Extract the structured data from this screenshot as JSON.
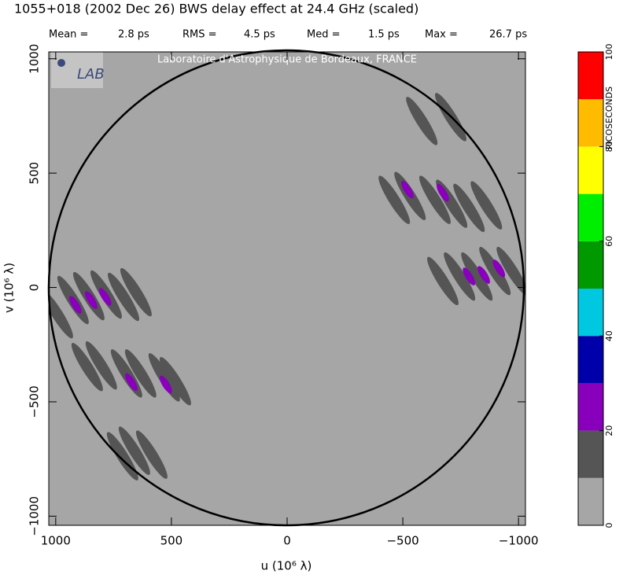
{
  "chart_data": {
    "type": "uv-map",
    "title": "1055+018  (2002 Dec 26)   BWS delay effect at 24.4 GHz (scaled)",
    "stats": [
      {
        "label": "Mean =",
        "value": "2.8 ps"
      },
      {
        "label": "RMS =",
        "value": "4.5 ps"
      },
      {
        "label": "Med =",
        "value": "1.5 ps"
      },
      {
        "label": "Max =",
        "value": "26.7 ps"
      }
    ],
    "watermark": "Laboratoire d'Astrophysique de Bordeaux, FRANCE",
    "xlabel": "u  (10⁶ λ)",
    "ylabel": "v  (10⁶ λ)",
    "xlim": [
      1030,
      -1030
    ],
    "ylim": [
      -1040,
      1030
    ],
    "xticks": [
      1000,
      500,
      0,
      {
        "value": -500,
        "label": "−500"
      },
      {
        "value": -1000,
        "label": "−1000"
      }
    ],
    "yticks": [
      {
        "value": -1000,
        "label": "−1000"
      },
      {
        "value": -500,
        "label": "−500"
      },
      0,
      500,
      1000
    ],
    "background_color": "#a6a6a6",
    "colorbar": {
      "label": "PICOSECONDS",
      "lim": [
        0,
        100
      ],
      "ticks": [
        0,
        20,
        40,
        60,
        80,
        100
      ],
      "bounds": [
        0,
        10,
        20,
        30,
        40,
        50,
        60,
        70,
        80,
        90,
        100
      ],
      "colors": [
        "#a6a6a6",
        "#555555",
        "#8800bb",
        "#0000aa",
        "#00c8e0",
        "#009900",
        "#00ee00",
        "#ffff00",
        "#ffbb00",
        "#ff0000"
      ]
    },
    "regions": [
      {
        "u": 993,
        "v": -117,
        "delay": 15
      },
      {
        "u": 925,
        "v": -55,
        "delay": 15
      },
      {
        "u": 857,
        "v": -38,
        "delay": 15
      },
      {
        "u": 782,
        "v": -31,
        "delay": 15
      },
      {
        "u": 707,
        "v": -41,
        "delay": 15
      },
      {
        "u": 653,
        "v": -21,
        "delay": 15
      },
      {
        "u": 864,
        "v": -348,
        "delay": 15
      },
      {
        "u": 803,
        "v": -341,
        "delay": 15
      },
      {
        "u": 694,
        "v": -376,
        "delay": 15
      },
      {
        "u": 633,
        "v": -376,
        "delay": 15
      },
      {
        "u": 531,
        "v": -393,
        "delay": 15
      },
      {
        "u": 483,
        "v": -410,
        "delay": 15
      },
      {
        "u": 711,
        "v": -738,
        "delay": 15
      },
      {
        "u": 660,
        "v": -714,
        "delay": 15
      },
      {
        "u": 585,
        "v": -731,
        "delay": 15
      },
      {
        "u": -582,
        "v": 728,
        "delay": 15
      },
      {
        "u": -707,
        "v": 745,
        "delay": 15
      },
      {
        "u": -463,
        "v": 383,
        "delay": 15
      },
      {
        "u": -531,
        "v": 400,
        "delay": 15
      },
      {
        "u": -639,
        "v": 383,
        "delay": 15
      },
      {
        "u": -711,
        "v": 366,
        "delay": 15
      },
      {
        "u": -786,
        "v": 348,
        "delay": 15
      },
      {
        "u": -861,
        "v": 359,
        "delay": 15
      },
      {
        "u": -673,
        "v": 28,
        "delay": 15
      },
      {
        "u": -745,
        "v": 48,
        "delay": 15
      },
      {
        "u": -820,
        "v": 48,
        "delay": 15
      },
      {
        "u": -898,
        "v": 72,
        "delay": 15
      },
      {
        "u": -973,
        "v": 72,
        "delay": 15
      },
      {
        "u": 915,
        "v": -76,
        "delay": 25
      },
      {
        "u": 847,
        "v": -55,
        "delay": 25
      },
      {
        "u": 786,
        "v": -41,
        "delay": 25
      },
      {
        "u": 673,
        "v": -414,
        "delay": 25
      },
      {
        "u": 524,
        "v": -424,
        "delay": 25
      },
      {
        "u": -520,
        "v": 428,
        "delay": 25
      },
      {
        "u": -673,
        "v": 414,
        "delay": 25
      },
      {
        "u": -786,
        "v": 48,
        "delay": 25
      },
      {
        "u": -850,
        "v": 55,
        "delay": 25
      },
      {
        "u": -915,
        "v": 83,
        "delay": 25
      }
    ]
  }
}
